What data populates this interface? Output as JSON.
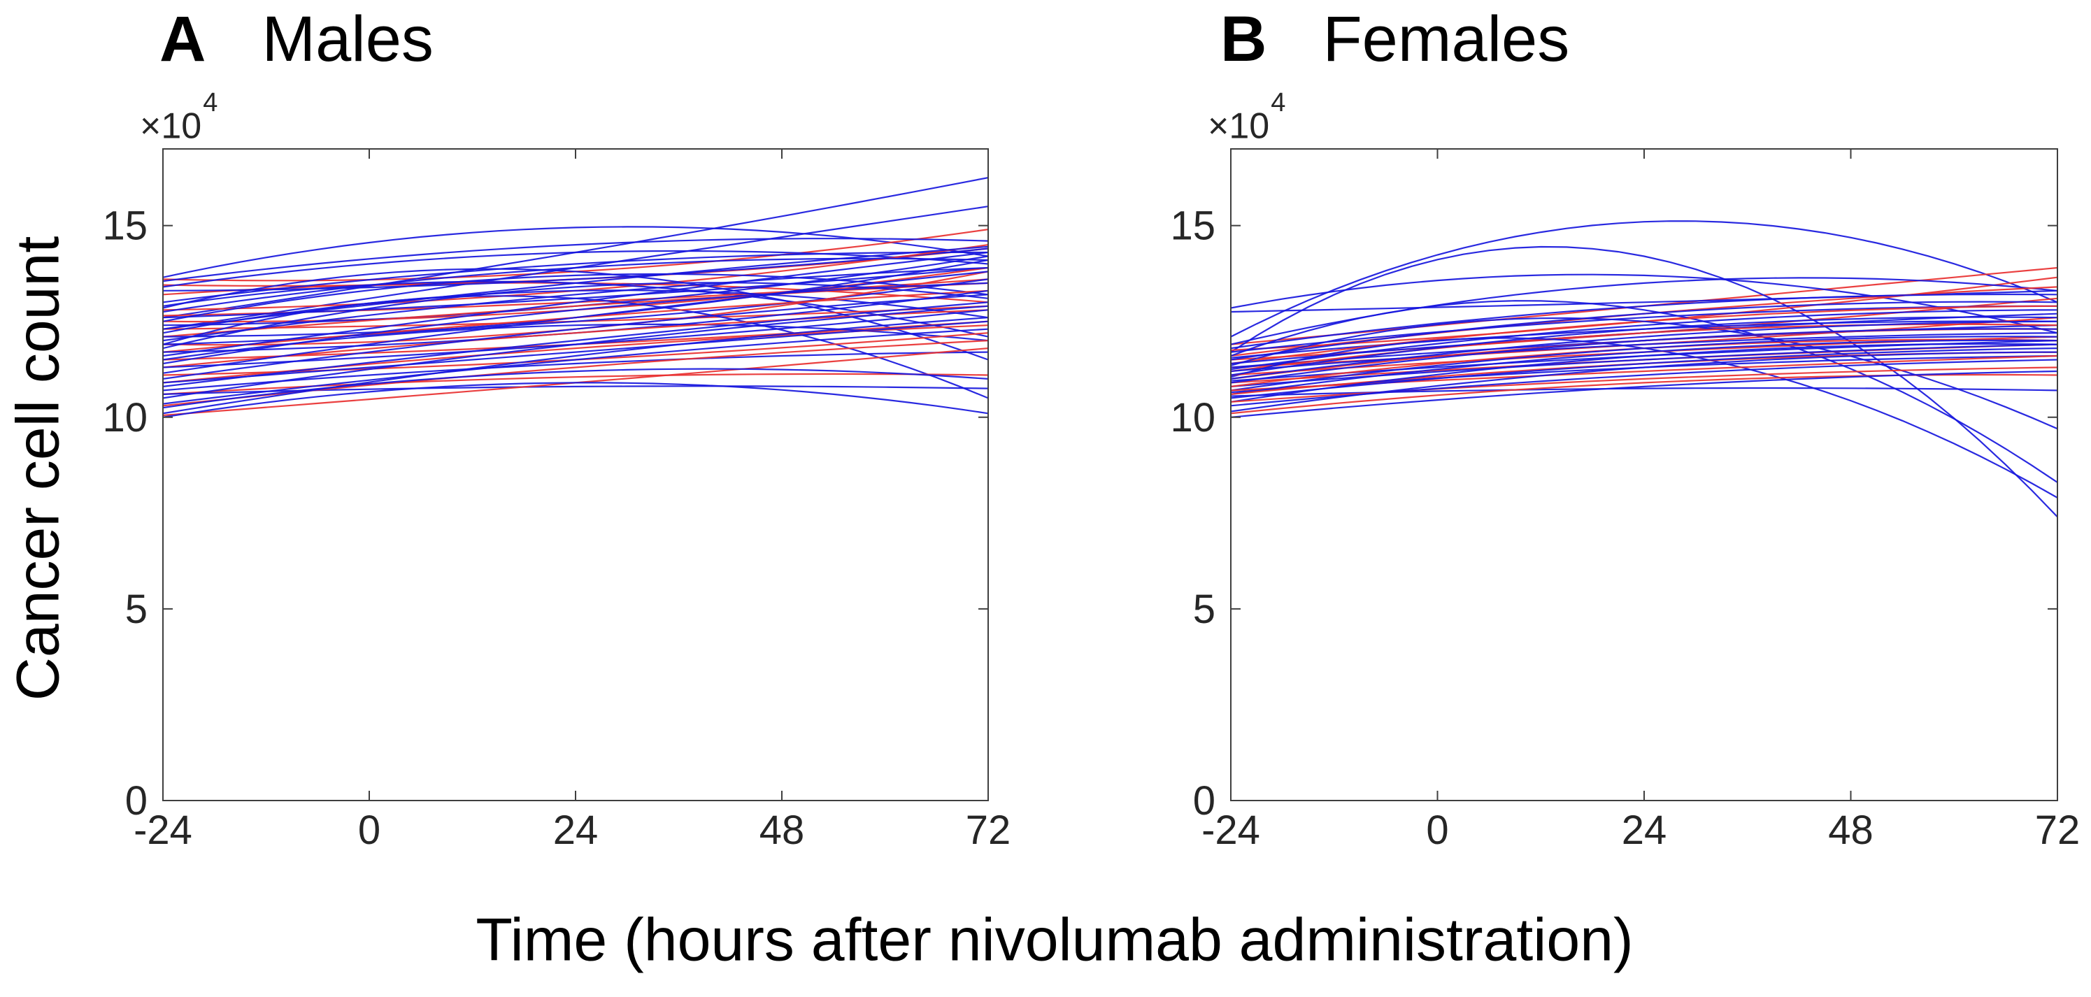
{
  "figure": {
    "y_axis_label": "Cancer cell count",
    "x_axis_label": "Time (hours after nivolumab administration)",
    "background_color": "#ffffff",
    "axis_color": "#3f3f3f",
    "tick_text_color": "#262626",
    "line_colors": {
      "b": "#1717dd",
      "r": "#e83030"
    }
  },
  "panels": [
    {
      "letter": "A",
      "title": "Males",
      "scale_base": "×10",
      "scale_exp": "4"
    },
    {
      "letter": "B",
      "title": "Females",
      "scale_base": "×10",
      "scale_exp": "4"
    }
  ],
  "chart_data": [
    {
      "type": "line",
      "panel": "A",
      "title": "Males",
      "xlabel": "Time (hours after nivolumab administration)",
      "ylabel": "Cancer cell count",
      "units": "cancer cell count in multiples of 10^4",
      "xlim": [
        -24,
        72
      ],
      "ylim": [
        0,
        17
      ],
      "x_ticks": [
        -24,
        0,
        24,
        48,
        72
      ],
      "y_ticks": [
        0,
        5,
        10,
        15
      ],
      "y_scale_label": "×10^4",
      "grid": false,
      "legend": "none",
      "series_model": "each series is a smooth quadratic trajectory through anchor values y(-24h), y(24h), y(72h); entry format [color, y-24, y24, y72]",
      "series": [
        [
          "b",
          13.65,
          14.95,
          14.2
        ],
        [
          "r",
          13.6,
          13.8,
          14.9
        ],
        [
          "b",
          12.6,
          14.3,
          16.25
        ],
        [
          "b",
          12.3,
          13.9,
          15.5
        ],
        [
          "r",
          13.45,
          13.6,
          14.4
        ],
        [
          "b",
          13.55,
          14.5,
          14.6
        ],
        [
          "b",
          13.4,
          14.3,
          14.0
        ],
        [
          "r",
          13.2,
          13.5,
          13.0
        ],
        [
          "b",
          13.3,
          13.6,
          14.4
        ],
        [
          "b",
          13.0,
          14.0,
          14.3
        ],
        [
          "r",
          12.8,
          13.3,
          14.5
        ],
        [
          "b",
          12.9,
          13.5,
          12.1
        ],
        [
          "b",
          12.75,
          13.9,
          14.1
        ],
        [
          "r",
          12.65,
          13.0,
          13.6
        ],
        [
          "b",
          12.85,
          13.8,
          11.5
        ],
        [
          "b",
          12.6,
          13.1,
          13.9
        ],
        [
          "r",
          12.5,
          12.8,
          13.9
        ],
        [
          "b",
          12.5,
          13.7,
          13.2
        ],
        [
          "b",
          12.4,
          12.9,
          14.2
        ],
        [
          "r",
          12.3,
          12.5,
          12.9
        ],
        [
          "b",
          12.3,
          13.5,
          14.45
        ],
        [
          "b",
          12.2,
          13.3,
          12.6
        ],
        [
          "r",
          12.1,
          12.9,
          13.5
        ],
        [
          "b",
          12.1,
          12.5,
          13.6
        ],
        [
          "b",
          12.0,
          13.2,
          13.9
        ],
        [
          "r",
          11.9,
          12.3,
          13.8
        ],
        [
          "b",
          11.9,
          13.1,
          10.5
        ],
        [
          "b",
          11.9,
          12.6,
          14.1
        ],
        [
          "r",
          11.7,
          12.6,
          13.3
        ],
        [
          "b",
          11.8,
          13.4,
          13.1
        ],
        [
          "b",
          11.7,
          12.2,
          13.3
        ],
        [
          "r",
          11.5,
          11.9,
          12.5
        ],
        [
          "b",
          11.6,
          13.0,
          14.3
        ],
        [
          "b",
          11.5,
          12.4,
          12.0
        ],
        [
          "r",
          11.3,
          12.2,
          12.8
        ],
        [
          "b",
          11.4,
          12.8,
          13.5
        ],
        [
          "b",
          11.3,
          11.9,
          12.8
        ],
        [
          "r",
          11.1,
          11.5,
          12.2
        ],
        [
          "b",
          11.15,
          12.6,
          13.8
        ],
        [
          "b",
          11.0,
          12.3,
          13.2
        ],
        [
          "r",
          10.9,
          11.8,
          12.4
        ],
        [
          "b",
          10.9,
          11.7,
          12.5
        ],
        [
          "b",
          10.8,
          12.0,
          13.0
        ],
        [
          "r",
          10.6,
          11.05,
          11.1
        ],
        [
          "b",
          10.7,
          11.4,
          11.7
        ],
        [
          "b",
          10.6,
          10.8,
          10.75
        ],
        [
          "r",
          10.3,
          11.3,
          12.0
        ],
        [
          "b",
          10.5,
          11.9,
          12.9
        ],
        [
          "b",
          10.35,
          11.5,
          12.3
        ],
        [
          "r",
          10.05,
          10.9,
          11.8
        ],
        [
          "b",
          10.25,
          11.2,
          11.0
        ],
        [
          "b",
          10.1,
          11.6,
          12.6
        ],
        [
          "b",
          10.0,
          10.9,
          10.1
        ]
      ]
    },
    {
      "type": "line",
      "panel": "B",
      "title": "Females",
      "xlabel": "Time (hours after nivolumab administration)",
      "ylabel": "Cancer cell count",
      "units": "cancer cell count in multiples of 10^4",
      "xlim": [
        -24,
        72
      ],
      "ylim": [
        0,
        17
      ],
      "x_ticks": [
        -24,
        0,
        24,
        48,
        72
      ],
      "y_ticks": [
        0,
        5,
        10,
        15
      ],
      "y_scale_label": "×10^4",
      "grid": false,
      "legend": "none",
      "series_model": "each series is a smooth quadratic trajectory through anchor values y(-24h), y(24h), y(72h); entry format [color, y-24, y24, y72]",
      "series": [
        [
          "b",
          12.1,
          15.1,
          13.0
        ],
        [
          "r",
          11.9,
          12.9,
          13.9
        ],
        [
          "b",
          11.7,
          14.2,
          7.4
        ],
        [
          "b",
          12.85,
          13.7,
          12.2
        ],
        [
          "r",
          11.75,
          12.5,
          13.65
        ],
        [
          "b",
          12.75,
          13.0,
          13.3
        ],
        [
          "b",
          11.9,
          13.5,
          13.3
        ],
        [
          "r",
          11.6,
          12.7,
          13.4
        ],
        [
          "b",
          11.8,
          12.9,
          13.2
        ],
        [
          "b",
          11.6,
          12.8,
          8.3
        ],
        [
          "r",
          11.5,
          12.2,
          13.1
        ],
        [
          "b",
          11.7,
          12.6,
          12.9
        ],
        [
          "b",
          11.55,
          12.3,
          12.5
        ],
        [
          "r",
          11.4,
          12.5,
          12.9
        ],
        [
          "b",
          11.5,
          12.7,
          13.0
        ],
        [
          "b",
          11.35,
          12.5,
          9.7
        ],
        [
          "r",
          11.3,
          11.9,
          12.6
        ],
        [
          "b",
          11.4,
          12.2,
          12.7
        ],
        [
          "b",
          11.3,
          12.0,
          12.4
        ],
        [
          "r",
          11.2,
          12.2,
          12.4
        ],
        [
          "b",
          11.25,
          12.4,
          12.8
        ],
        [
          "b",
          11.05,
          11.8,
          7.9
        ],
        [
          "r",
          11.1,
          11.7,
          12.1
        ],
        [
          "b",
          11.2,
          11.9,
          12.2
        ],
        [
          "b",
          11.1,
          12.3,
          12.6
        ],
        [
          "r",
          11.0,
          12.0,
          12.3
        ],
        [
          "b",
          11.0,
          12.1,
          12.5
        ],
        [
          "b",
          10.95,
          11.6,
          12.0
        ],
        [
          "r",
          10.9,
          11.5,
          11.9
        ],
        [
          "b",
          10.9,
          12.0,
          12.3
        ],
        [
          "b",
          10.8,
          11.5,
          11.9
        ],
        [
          "r",
          10.8,
          11.8,
          12.0
        ],
        [
          "b",
          10.7,
          11.8,
          12.1
        ],
        [
          "b",
          10.65,
          11.3,
          11.6
        ],
        [
          "r",
          10.7,
          11.2,
          11.6
        ],
        [
          "b",
          10.6,
          11.7,
          12.0
        ],
        [
          "b",
          10.55,
          10.75,
          10.7
        ],
        [
          "r",
          10.6,
          11.4,
          11.7
        ],
        [
          "b",
          10.5,
          11.4,
          11.8
        ],
        [
          "b",
          10.4,
          11.6,
          11.9
        ],
        [
          "r",
          10.4,
          11.0,
          11.3
        ],
        [
          "b",
          10.3,
          11.1,
          11.5
        ],
        [
          "b",
          10.15,
          11.3,
          11.7
        ],
        [
          "r",
          10.1,
          10.9,
          11.1
        ],
        [
          "b",
          10.0,
          10.8,
          11.2
        ]
      ]
    }
  ]
}
